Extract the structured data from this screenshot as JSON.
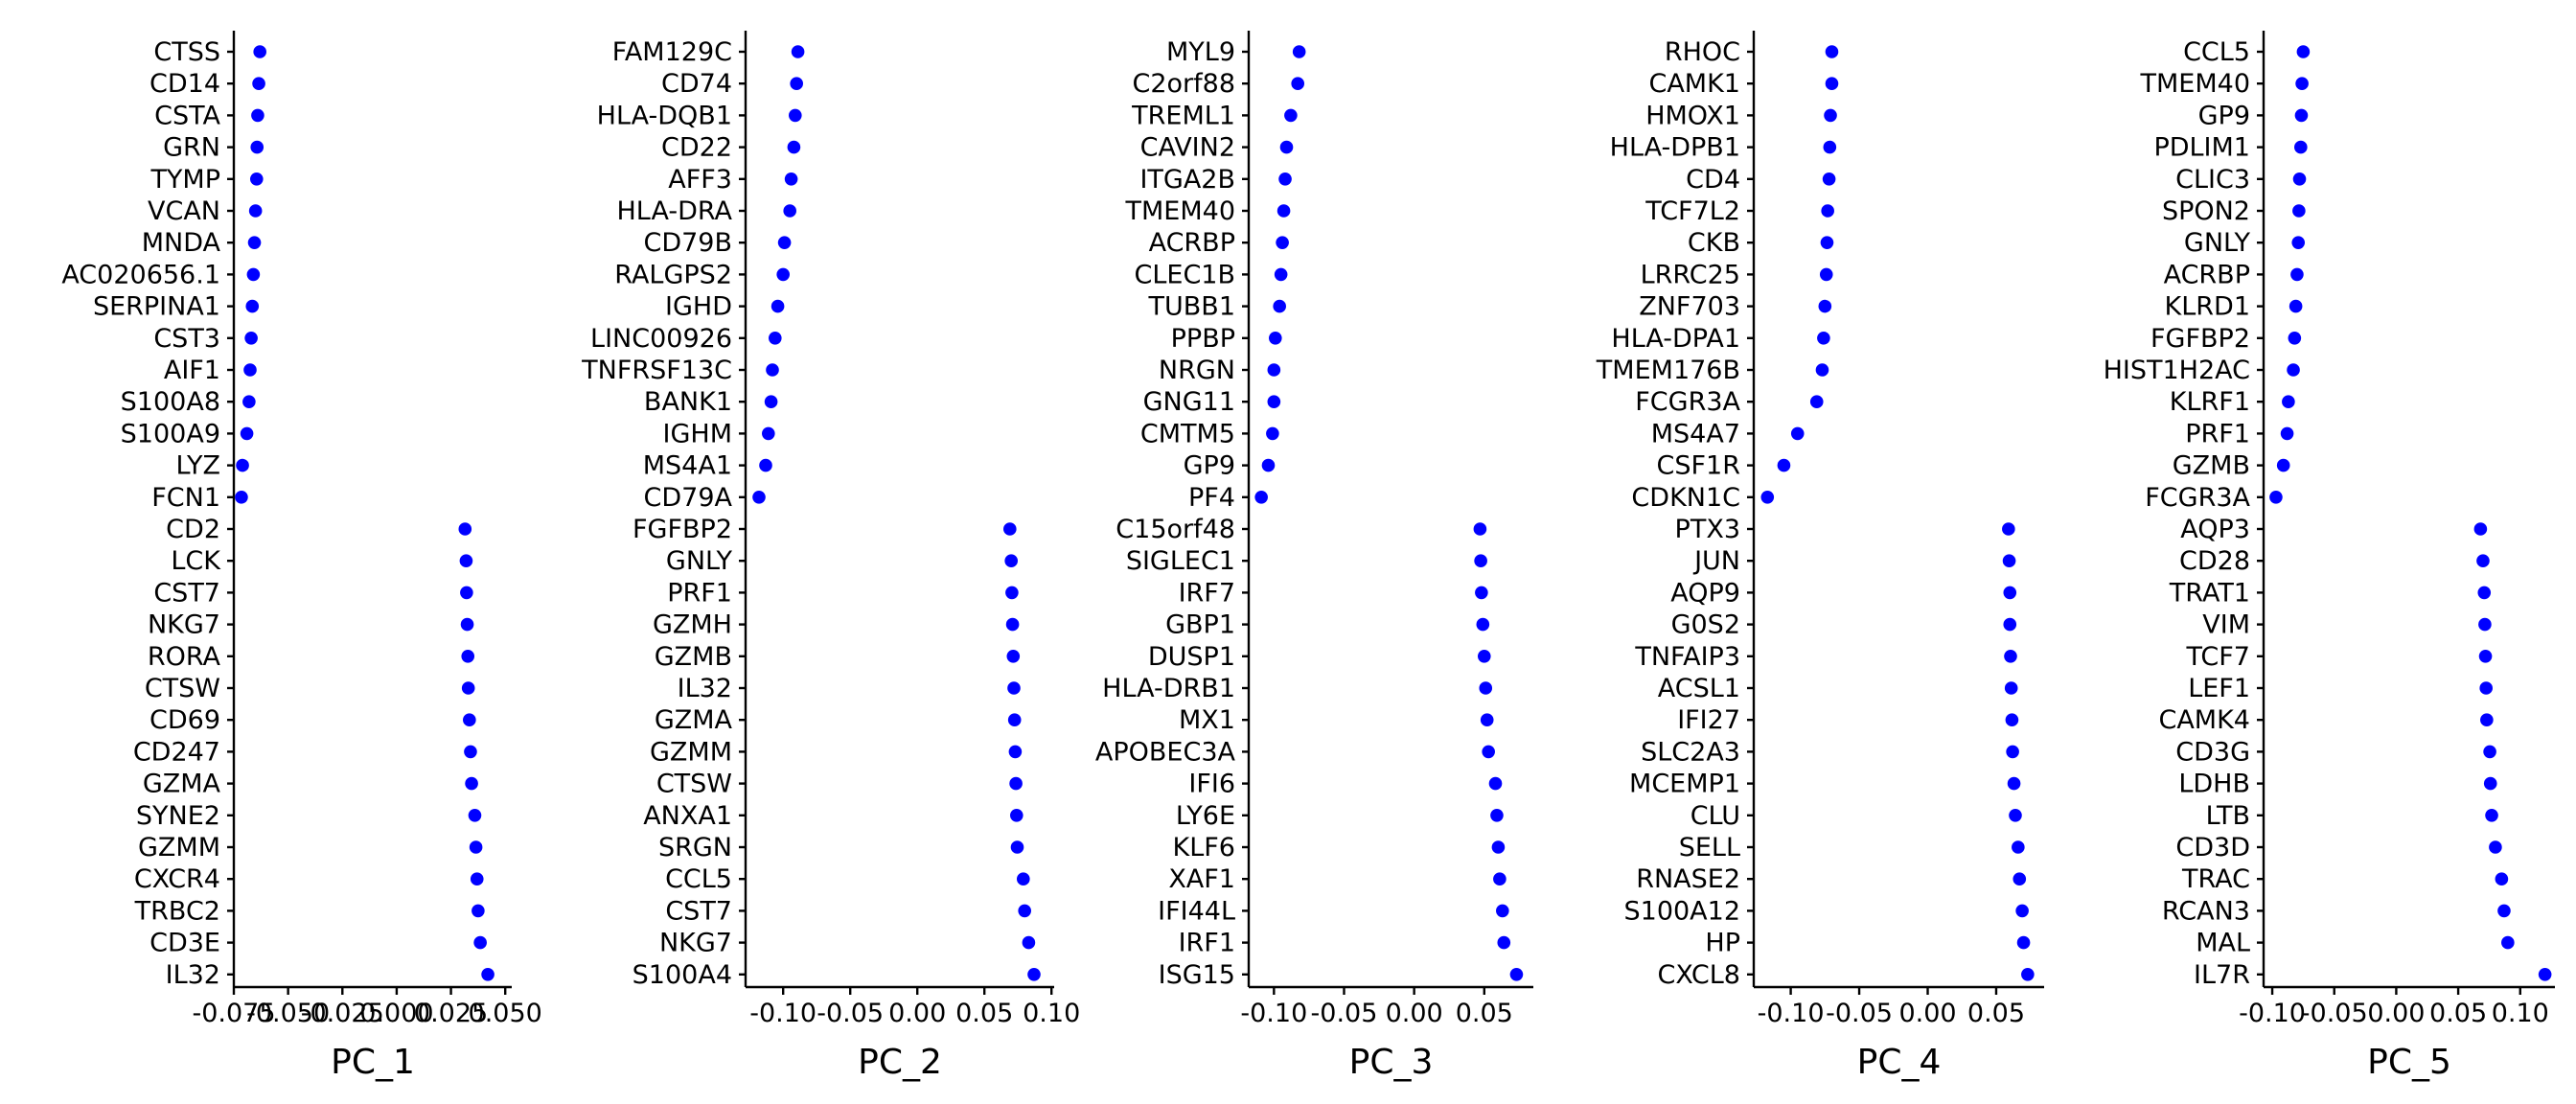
{
  "chart_data": [
    {
      "type": "scatter",
      "xlabel": "PC_1",
      "point_color": "#0000ff",
      "xlim": [
        -0.075,
        0.053
      ],
      "xticks": [
        -0.075,
        -0.05,
        -0.025,
        0.0,
        0.025,
        0.05
      ],
      "xtick_labels": [
        "-0.075",
        "-0.050",
        "-0.025",
        "0.000",
        "0.025",
        "0.050"
      ],
      "genes": [
        "CTSS",
        "CD14",
        "CSTA",
        "GRN",
        "TYMP",
        "VCAN",
        "MNDA",
        "AC020656.1",
        "SERPINA1",
        "CST3",
        "AIF1",
        "S100A8",
        "S100A9",
        "LYZ",
        "FCN1",
        "CD2",
        "LCK",
        "CST7",
        "NKG7",
        "RORA",
        "CTSW",
        "CD69",
        "CD247",
        "GZMA",
        "SYNE2",
        "GZMM",
        "CXCR4",
        "TRBC2",
        "CD3E",
        "IL32"
      ],
      "values": [
        -0.063,
        -0.0635,
        -0.064,
        -0.0643,
        -0.0645,
        -0.065,
        -0.0655,
        -0.066,
        -0.0665,
        -0.067,
        -0.0675,
        -0.068,
        -0.069,
        -0.071,
        -0.0715,
        0.0315,
        0.032,
        0.0322,
        0.0325,
        0.0328,
        0.033,
        0.0335,
        0.034,
        0.0345,
        0.036,
        0.0365,
        0.037,
        0.0375,
        0.0385,
        0.042
      ]
    },
    {
      "type": "scatter",
      "xlabel": "PC_2",
      "point_color": "#0000ff",
      "xlim": [
        -0.128,
        0.102
      ],
      "xticks": [
        -0.1,
        -0.05,
        0.0,
        0.05,
        0.1
      ],
      "xtick_labels": [
        "-0.10",
        "-0.05",
        "0.00",
        "0.05",
        "0.10"
      ],
      "genes": [
        "FAM129C",
        "CD74",
        "HLA-DQB1",
        "CD22",
        "AFF3",
        "HLA-DRA",
        "CD79B",
        "RALGPS2",
        "IGHD",
        "LINC00926",
        "TNFRSF13C",
        "BANK1",
        "IGHM",
        "MS4A1",
        "CD79A",
        "FGFBP2",
        "GNLY",
        "PRF1",
        "GZMH",
        "GZMB",
        "IL32",
        "GZMA",
        "GZMM",
        "CTSW",
        "ANXA1",
        "SRGN",
        "CCL5",
        "CST7",
        "NKG7",
        "S100A4"
      ],
      "values": [
        -0.089,
        -0.09,
        -0.091,
        -0.092,
        -0.094,
        -0.095,
        -0.099,
        -0.1,
        -0.104,
        -0.106,
        -0.108,
        -0.109,
        -0.111,
        -0.113,
        -0.118,
        0.069,
        0.07,
        0.0705,
        0.071,
        0.0715,
        0.072,
        0.0725,
        0.073,
        0.0735,
        0.074,
        0.0745,
        0.079,
        0.08,
        0.083,
        0.087
      ]
    },
    {
      "type": "scatter",
      "xlabel": "PC_3",
      "point_color": "#0000ff",
      "xlim": [
        -0.118,
        0.085
      ],
      "xticks": [
        -0.1,
        -0.05,
        0.0,
        0.05
      ],
      "xtick_labels": [
        "-0.10",
        "-0.05",
        "0.00",
        "0.05"
      ],
      "genes": [
        "MYL9",
        "C2orf88",
        "TREML1",
        "CAVIN2",
        "ITGA2B",
        "TMEM40",
        "ACRBP",
        "CLEC1B",
        "TUBB1",
        "PPBP",
        "NRGN",
        "GNG11",
        "CMTM5",
        "GP9",
        "PF4",
        "C15orf48",
        "SIGLEC1",
        "IRF7",
        "GBP1",
        "DUSP1",
        "HLA-DRB1",
        "MX1",
        "APOBEC3A",
        "IFI6",
        "LY6E",
        "KLF6",
        "XAF1",
        "IFI44L",
        "IRF1",
        "ISG15"
      ],
      "values": [
        -0.082,
        -0.083,
        -0.088,
        -0.091,
        -0.092,
        -0.093,
        -0.094,
        -0.095,
        -0.096,
        -0.099,
        -0.1,
        -0.1,
        -0.101,
        -0.104,
        -0.109,
        0.047,
        0.0475,
        0.048,
        0.049,
        0.05,
        0.051,
        0.052,
        0.053,
        0.058,
        0.059,
        0.06,
        0.061,
        0.063,
        0.064,
        0.073
      ]
    },
    {
      "type": "scatter",
      "xlabel": "PC_4",
      "point_color": "#0000ff",
      "xlim": [
        -0.127,
        0.085
      ],
      "xticks": [
        -0.1,
        -0.05,
        0.0,
        0.05
      ],
      "xtick_labels": [
        "-0.10",
        "-0.05",
        "0.00",
        "0.05"
      ],
      "genes": [
        "RHOC",
        "CAMK1",
        "HMOX1",
        "HLA-DPB1",
        "CD4",
        "TCF7L2",
        "CKB",
        "LRRC25",
        "ZNF703",
        "HLA-DPA1",
        "TMEM176B",
        "FCGR3A",
        "MS4A7",
        "CSF1R",
        "CDKN1C",
        "PTX3",
        "JUN",
        "AQP9",
        "G0S2",
        "TNFAIP3",
        "ACSL1",
        "IFI27",
        "SLC2A3",
        "MCEMP1",
        "CLU",
        "SELL",
        "RNASE2",
        "S100A12",
        "HP",
        "CXCL8"
      ],
      "values": [
        -0.07,
        -0.07,
        -0.071,
        -0.0715,
        -0.072,
        -0.073,
        -0.0735,
        -0.074,
        -0.075,
        -0.076,
        -0.077,
        -0.081,
        -0.095,
        -0.105,
        -0.117,
        0.059,
        0.0595,
        0.06,
        0.06,
        0.0605,
        0.061,
        0.0615,
        0.062,
        0.063,
        0.064,
        0.066,
        0.067,
        0.069,
        0.07,
        0.073
      ]
    },
    {
      "type": "scatter",
      "xlabel": "PC_5",
      "point_color": "#0000ff",
      "xlim": [
        -0.107,
        0.128
      ],
      "xticks": [
        -0.1,
        -0.05,
        0.0,
        0.05,
        0.1
      ],
      "xtick_labels": [
        "-0.10",
        "-0.05",
        "0.00",
        "0.05",
        "0.10"
      ],
      "genes": [
        "CCL5",
        "TMEM40",
        "GP9",
        "PDLIM1",
        "CLIC3",
        "SPON2",
        "GNLY",
        "ACRBP",
        "KLRD1",
        "FGFBP2",
        "HIST1H2AC",
        "KLRF1",
        "PRF1",
        "GZMB",
        "FCGR3A",
        "AQP3",
        "CD28",
        "TRAT1",
        "VIM",
        "TCF7",
        "LEF1",
        "CAMK4",
        "CD3G",
        "LDHB",
        "LTB",
        "CD3D",
        "TRAC",
        "RCAN3",
        "MAL",
        "IL7R"
      ],
      "values": [
        -0.075,
        -0.076,
        -0.0765,
        -0.077,
        -0.078,
        -0.0785,
        -0.079,
        -0.08,
        -0.081,
        -0.082,
        -0.083,
        -0.087,
        -0.088,
        -0.091,
        -0.097,
        0.068,
        0.07,
        0.071,
        0.0715,
        0.072,
        0.0725,
        0.073,
        0.0755,
        0.076,
        0.077,
        0.08,
        0.085,
        0.087,
        0.09,
        0.12
      ]
    }
  ]
}
